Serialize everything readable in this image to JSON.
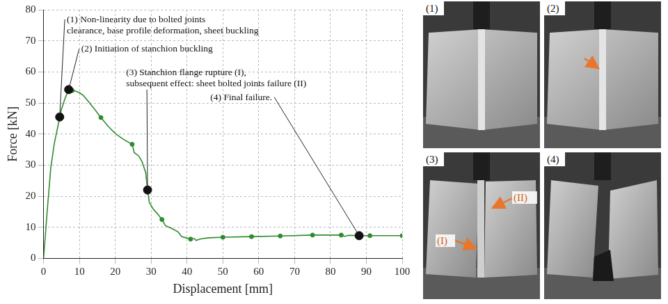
{
  "chart_data": {
    "type": "line",
    "x_label": "Displacement [mm]",
    "y_label": "Force [kN]",
    "x": [
      0,
      1,
      2,
      3,
      4,
      4.5,
      5,
      6,
      7,
      8,
      9,
      10,
      11,
      12,
      14,
      16,
      18,
      20,
      22,
      24.7,
      25.3,
      26.5,
      27.5,
      28.5,
      29,
      29.5,
      30.5,
      32,
      33,
      34,
      36,
      37.5,
      38.5,
      40,
      41,
      42,
      42.5,
      44,
      46,
      50,
      58,
      66,
      75,
      83,
      84,
      85,
      88,
      91,
      100
    ],
    "values": [
      0,
      15,
      29,
      37,
      42.5,
      45.5,
      48,
      51.5,
      54.3,
      54,
      53.8,
      53.3,
      52.5,
      51.2,
      48.3,
      45.3,
      42.5,
      40.2,
      38.5,
      36.7,
      34,
      33,
      31,
      27.5,
      22,
      18,
      16,
      14,
      12.5,
      10.5,
      9.5,
      8.5,
      7,
      6.5,
      6.2,
      6.4,
      5.8,
      6.3,
      6.6,
      6.8,
      7,
      7.2,
      7.5,
      7.5,
      7.1,
      7.4,
      7.3,
      7.3,
      7.3
    ],
    "color": "#2e8b2e",
    "marker": "circle",
    "marker_points": {
      "x": [
        8,
        16,
        24.7,
        33,
        41,
        50,
        58,
        66,
        75,
        83,
        91,
        100
      ],
      "y": [
        54,
        45.3,
        36.7,
        12.5,
        6.2,
        6.8,
        7,
        7.2,
        7.5,
        7.5,
        7.3,
        7.3
      ]
    },
    "annotations": [
      {
        "text": [
          "(1) Non-linearity due to bolted joints",
          "clearance, base profile deformation, sheet buckling"
        ],
        "x": 4.5,
        "y": 45.5
      },
      {
        "text": [
          "(2) Initiation of stanchion buckling"
        ],
        "x": 7,
        "y": 54.3
      },
      {
        "text": [
          "(3) Stanchion flange rupture (I),",
          "subsequent effect: sheet bolted joints failure (II)"
        ],
        "x": 29,
        "y": 22
      },
      {
        "text": [
          "(4) Final failure."
        ],
        "x": 88,
        "y": 7.3
      }
    ],
    "xlim": [
      0,
      100
    ],
    "xticks": [
      0,
      10,
      20,
      30,
      40,
      50,
      60,
      70,
      80,
      90,
      100
    ],
    "ylim": [
      0,
      80
    ],
    "yticks": [
      0,
      10,
      20,
      30,
      40,
      50,
      60,
      70,
      80
    ],
    "grid": true
  },
  "photo_panels": [
    {
      "label": "(1)",
      "callouts": []
    },
    {
      "label": "(2)",
      "callouts": []
    },
    {
      "label": "(3)",
      "callouts": [
        "(I)",
        "(II)"
      ]
    },
    {
      "label": "(4)",
      "callouts": []
    }
  ]
}
